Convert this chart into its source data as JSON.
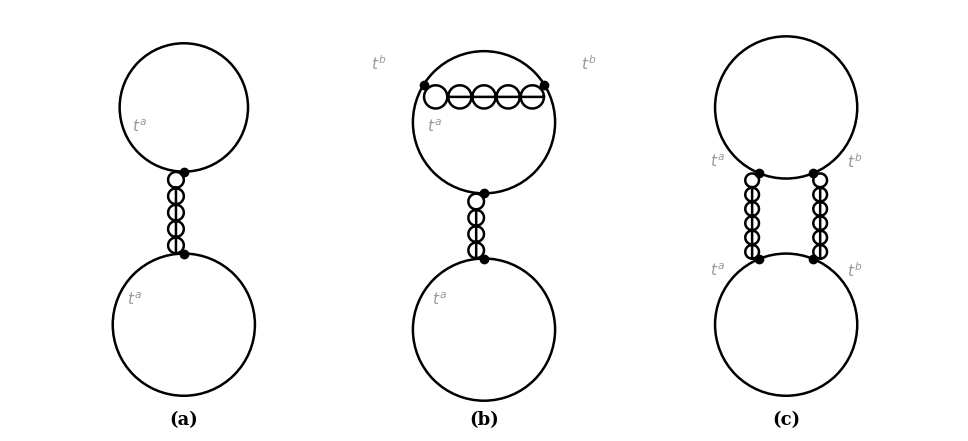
{
  "fig_width": 9.68,
  "fig_height": 4.41,
  "dpi": 100,
  "background_color": "#ffffff",
  "line_color": "#000000",
  "line_width": 1.8,
  "dot_size": 6,
  "text_color": "#999999",
  "font_size": 11,
  "label_a": "(a)",
  "label_b": "(b)",
  "label_c": "(c)"
}
